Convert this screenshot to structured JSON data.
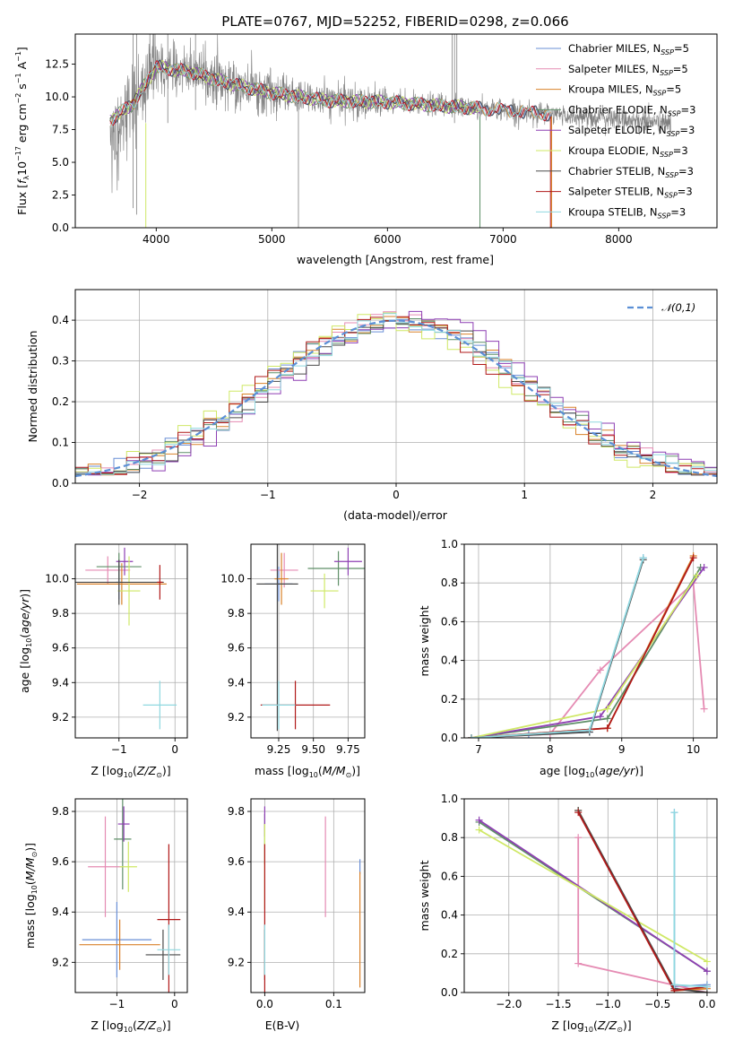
{
  "colors": {
    "Chabrier MILES": "#6a8fd6",
    "Salpeter MILES": "#e58bb3",
    "Kroupa MILES": "#d9822b",
    "Chabrier ELODIE": "#5f8f68",
    "Salpeter ELODIE": "#8e3fb3",
    "Kroupa ELODIE": "#cfe866",
    "Chabrier STELIB": "#4a4a4a",
    "Salpeter STELIB": "#b01818",
    "Kroupa STELIB": "#8fd8e0"
  },
  "chart_data": [
    {
      "type": "line",
      "title": "PLATE=0767, MJD=52252, FIBERID=0298, z=0.066",
      "xlabel": "wavelength [Angstrom, rest frame]",
      "ylabel": "Flux [fλ10⁻¹⁷ erg cm⁻² s⁻¹ A⁻¹]",
      "xlim": [
        3300,
        8850
      ],
      "ylim": [
        0,
        14.8
      ],
      "xticks": [
        "4000",
        "5000",
        "6000",
        "7000",
        "8000"
      ],
      "yticks": [
        "0.0",
        "2.5",
        "5.0",
        "7.5",
        "10.0",
        "12.5"
      ],
      "grid": false,
      "legend_position": "top-right",
      "legend": [
        "Chabrier MILES, N_SSP=5",
        "Salpeter MILES, N_SSP=5",
        "Kroupa MILES, N_SSP=5",
        "Chabrier ELODIE, N_SSP=3",
        "Salpeter ELODIE, N_SSP=3",
        "Kroupa ELODIE, N_SSP=3",
        "Chabrier STELIB, N_SSP=3",
        "Salpeter STELIB, N_SSP=3",
        "Kroupa STELIB, N_SSP=3"
      ],
      "data_series": {
        "name": "data",
        "color": "#808080",
        "x_range": [
          3600,
          8450
        ]
      },
      "model_continuum": {
        "x": [
          3600,
          3800,
          4000,
          4300,
          4600,
          5000,
          5500,
          6000,
          6500,
          7000,
          7500,
          8000,
          8400
        ],
        "y": [
          8.2,
          9.5,
          12.3,
          11.9,
          11.1,
          10.3,
          9.7,
          9.6,
          9.3,
          9.0,
          8.6,
          8.3,
          8.0
        ]
      }
    },
    {
      "type": "line",
      "xlabel": "(data-model)/error",
      "ylabel": "Normed distribution",
      "xlim": [
        -2.5,
        2.5
      ],
      "ylim": [
        0,
        0.475
      ],
      "xticks": [
        "−2",
        "−1",
        "0",
        "1",
        "2"
      ],
      "yticks": [
        "0.0",
        "0.1",
        "0.2",
        "0.3",
        "0.4"
      ],
      "grid": true,
      "legend_position": "top-right",
      "legend": [
        "𝒩(0,1)"
      ],
      "bin_width": 0.1,
      "reference_curve": "normal(0,1)",
      "series": [
        {
          "name": "Chabrier MILES",
          "offset": 0.05,
          "skew": -0.02
        },
        {
          "name": "Salpeter MILES",
          "offset": 0.0,
          "skew": 0.01
        },
        {
          "name": "Kroupa MILES",
          "offset": 0.02,
          "skew": 0.0
        },
        {
          "name": "Chabrier ELODIE",
          "offset": -0.02,
          "skew": 0.015
        },
        {
          "name": "Salpeter ELODIE",
          "offset": 0.08,
          "skew": 0.02
        },
        {
          "name": "Kroupa ELODIE",
          "offset": -0.05,
          "skew": -0.015
        },
        {
          "name": "Chabrier STELIB",
          "offset": 0.03,
          "skew": 0.005
        },
        {
          "name": "Salpeter STELIB",
          "offset": -0.01,
          "skew": -0.01
        },
        {
          "name": "Kroupa STELIB",
          "offset": 0.01,
          "skew": 0.012
        }
      ]
    },
    {
      "type": "scatter",
      "xlabel": "Z [log10(Z/Z⊙)]",
      "ylabel": "age  [log10(age/yr)]",
      "xlim": [
        -1.78,
        0.22
      ],
      "ylim": [
        9.08,
        10.2
      ],
      "xticks": [
        -1,
        0
      ],
      "yticks": [
        "9.2",
        "9.4",
        "9.6",
        "9.8",
        "10.0"
      ],
      "grid": true,
      "errorbars": [
        {
          "name": "Chabrier MILES",
          "x": -1.0,
          "y": 9.98,
          "xerr": 0.05,
          "yerr": 0.1
        },
        {
          "name": "Salpeter MILES",
          "x": -1.2,
          "y": 10.05,
          "xerr": 0.4,
          "yerr": 0.08
        },
        {
          "name": "Kroupa MILES",
          "x": -0.95,
          "y": 9.97,
          "xerr": 0.8,
          "yerr": 0.12
        },
        {
          "name": "Chabrier ELODIE",
          "x": -1.0,
          "y": 10.07,
          "xerr": 0.4,
          "yerr": 0.08
        },
        {
          "name": "Salpeter ELODIE",
          "x": -0.9,
          "y": 10.1,
          "xerr": 0.15,
          "yerr": 0.08
        },
        {
          "name": "Kroupa ELODIE",
          "x": -0.82,
          "y": 9.93,
          "xerr": 0.2,
          "yerr": 0.2
        },
        {
          "name": "Chabrier STELIB",
          "x": -1.0,
          "y": 9.98,
          "xerr": 0.8,
          "yerr": 0.13
        },
        {
          "name": "Salpeter STELIB",
          "x": -0.27,
          "y": 9.98,
          "xerr": 0.05,
          "yerr": 0.1
        },
        {
          "name": "Kroupa STELIB",
          "x": -0.27,
          "y": 9.27,
          "xerr": 0.3,
          "yerr": 0.14
        }
      ]
    },
    {
      "type": "scatter",
      "xlabel": "mass [log10(M/M⊙)]",
      "xlim": [
        9.05,
        9.87
      ],
      "ylim": [
        9.08,
        10.2
      ],
      "xticks": [
        "9.25",
        "9.50",
        "9.75"
      ],
      "yticks": [
        "9.2",
        "9.4",
        "9.6",
        "9.8",
        "10.0"
      ],
      "grid": true,
      "errorbars": [
        {
          "name": "Chabrier MILES",
          "x": 9.25,
          "y": 9.97,
          "xerr": 0.1,
          "yerr": 0.1
        },
        {
          "name": "Salpeter MILES",
          "x": 9.29,
          "y": 10.05,
          "xerr": 0.1,
          "yerr": 0.1
        },
        {
          "name": "Kroupa MILES",
          "x": 9.27,
          "y": 10.0,
          "xerr": 0.05,
          "yerr": 0.15
        },
        {
          "name": "Chabrier ELODIE",
          "x": 9.68,
          "y": 10.06,
          "xerr": 0.22,
          "yerr": 0.1
        },
        {
          "name": "Salpeter ELODIE",
          "x": 9.75,
          "y": 10.1,
          "xerr": 0.1,
          "yerr": 0.08
        },
        {
          "name": "Kroupa ELODIE",
          "x": 9.58,
          "y": 9.93,
          "xerr": 0.1,
          "yerr": 0.1
        },
        {
          "name": "Chabrier STELIB",
          "x": 9.24,
          "y": 9.97,
          "xerr": 0.15,
          "yerr": 0.85
        },
        {
          "name": "Salpeter STELIB",
          "x": 9.37,
          "y": 9.27,
          "xerr": 0.25,
          "yerr": 0.14
        },
        {
          "name": "Kroupa STELIB",
          "x": 9.25,
          "y": 9.27,
          "xerr": 0.12,
          "yerr": 0.14
        }
      ]
    },
    {
      "type": "line",
      "xlabel": "age  [log10(age/yr)]",
      "ylabel": "mass weight",
      "xlim": [
        6.8,
        10.33
      ],
      "ylim": [
        0,
        1.0
      ],
      "xticks": [
        "7",
        "8",
        "9",
        "10"
      ],
      "yticks": [
        "0.0",
        "0.2",
        "0.4",
        "0.6",
        "0.8",
        "1.0"
      ],
      "grid": true,
      "series": [
        {
          "name": "Chabrier MILES",
          "x": [
            6.9,
            7.7,
            8.55,
            9.3
          ],
          "y": [
            0.0,
            0.02,
            0.03,
            0.93
          ]
        },
        {
          "name": "Salpeter MILES",
          "x": [
            6.9,
            8.0,
            8.7,
            10.0,
            10.15
          ],
          "y": [
            0.0,
            0.02,
            0.35,
            0.8,
            0.15
          ]
        },
        {
          "name": "Kroupa MILES",
          "x": [
            6.9,
            8.8,
            10.0
          ],
          "y": [
            0.0,
            0.05,
            0.94
          ]
        },
        {
          "name": "Chabrier ELODIE",
          "x": [
            6.9,
            8.8,
            10.1
          ],
          "y": [
            0.0,
            0.1,
            0.88
          ]
        },
        {
          "name": "Salpeter ELODIE",
          "x": [
            6.9,
            8.7,
            10.15
          ],
          "y": [
            0.0,
            0.11,
            0.88
          ]
        },
        {
          "name": "Kroupa ELODIE",
          "x": [
            6.9,
            8.8,
            10.05
          ],
          "y": [
            0.0,
            0.15,
            0.84
          ]
        },
        {
          "name": "Chabrier STELIB",
          "x": [
            6.9,
            8.55,
            9.3
          ],
          "y": [
            0.0,
            0.03,
            0.92
          ]
        },
        {
          "name": "Salpeter STELIB",
          "x": [
            6.9,
            8.8,
            10.0
          ],
          "y": [
            0.0,
            0.05,
            0.93
          ]
        },
        {
          "name": "Kroupa STELIB",
          "x": [
            6.9,
            8.55,
            9.3
          ],
          "y": [
            0.0,
            0.04,
            0.93
          ]
        }
      ]
    },
    {
      "type": "scatter",
      "xlabel": "Z [log10(Z/Z⊙)]",
      "ylabel": "mass [log10(M/M⊙)]",
      "xlim": [
        -1.72,
        0.22
      ],
      "ylim": [
        9.08,
        9.85
      ],
      "xticks": [
        -1,
        0
      ],
      "yticks": [
        "9.2",
        "9.4",
        "9.6",
        "9.8"
      ],
      "grid": true,
      "errorbars": [
        {
          "name": "Chabrier MILES",
          "x": -1.0,
          "y": 9.29,
          "xerr": 0.6,
          "yerr": 0.15
        },
        {
          "name": "Salpeter MILES",
          "x": -1.2,
          "y": 9.58,
          "xerr": 0.3,
          "yerr": 0.2
        },
        {
          "name": "Kroupa MILES",
          "x": -0.95,
          "y": 9.27,
          "xerr": 0.7,
          "yerr": 0.1
        },
        {
          "name": "Chabrier ELODIE",
          "x": -0.9,
          "y": 9.69,
          "xerr": 0.15,
          "yerr": 0.2
        },
        {
          "name": "Salpeter ELODIE",
          "x": -0.88,
          "y": 9.75,
          "xerr": 0.1,
          "yerr": 0.07
        },
        {
          "name": "Kroupa ELODIE",
          "x": -0.8,
          "y": 9.58,
          "xerr": 0.15,
          "yerr": 0.1
        },
        {
          "name": "Chabrier STELIB",
          "x": -0.2,
          "y": 9.23,
          "xerr": 0.3,
          "yerr": 0.1
        },
        {
          "name": "Salpeter STELIB",
          "x": -0.1,
          "y": 9.37,
          "xerr": 0.2,
          "yerr": 0.3
        },
        {
          "name": "Kroupa STELIB",
          "x": -0.1,
          "y": 9.25,
          "xerr": 0.2,
          "yerr": 0.1
        }
      ]
    },
    {
      "type": "scatter",
      "xlabel": "E(B-V)",
      "xlim": [
        -0.02,
        0.145
      ],
      "ylim": [
        9.08,
        9.85
      ],
      "xticks": [
        "0.0",
        "0.1"
      ],
      "yticks": [
        "9.2",
        "9.4",
        "9.6",
        "9.8"
      ],
      "grid": true,
      "errorbars": [
        {
          "name": "Chabrier MILES",
          "x": 0.138,
          "y": 9.58,
          "xerr": 0.0,
          "yerr": 0.03
        },
        {
          "name": "Salpeter MILES",
          "x": 0.088,
          "y": 9.58,
          "xerr": 0.0,
          "yerr": 0.2
        },
        {
          "name": "Kroupa MILES",
          "x": 0.138,
          "y": 9.33,
          "xerr": 0.0,
          "yerr": 0.23
        },
        {
          "name": "Chabrier ELODIE",
          "x": 0.0,
          "y": 9.69,
          "xerr": 0.0,
          "yerr": 0.1
        },
        {
          "name": "Salpeter ELODIE",
          "x": 0.0,
          "y": 9.76,
          "xerr": 0.0,
          "yerr": 0.06
        },
        {
          "name": "Kroupa ELODIE",
          "x": 0.0,
          "y": 9.58,
          "xerr": 0.0,
          "yerr": 0.17
        },
        {
          "name": "Chabrier STELIB",
          "x": 0.0,
          "y": 9.23,
          "xerr": 0.0,
          "yerr": 0.1
        },
        {
          "name": "Salpeter STELIB",
          "x": 0.0,
          "y": 9.37,
          "xerr": 0.0,
          "yerr": 0.3
        },
        {
          "name": "Kroupa STELIB",
          "x": 0.0,
          "y": 9.25,
          "xerr": 0.0,
          "yerr": 0.1
        }
      ]
    },
    {
      "type": "line",
      "xlabel": "Z [log10(Z/Z⊙)]",
      "ylabel": "mass weight",
      "xlim": [
        -2.45,
        0.1
      ],
      "ylim": [
        0,
        1.0
      ],
      "xticks": [
        "−2.0",
        "−1.5",
        "−1.0",
        "−0.5",
        "0.0"
      ],
      "yticks": [
        "0.0",
        "0.2",
        "0.4",
        "0.6",
        "0.8",
        "1.0"
      ],
      "grid": true,
      "series": [
        {
          "name": "Chabrier MILES",
          "x": [
            -0.33,
            -0.33,
            0.0
          ],
          "y": [
            0.93,
            0.03,
            0.04
          ]
        },
        {
          "name": "Salpeter MILES",
          "x": [
            -1.3,
            -1.3,
            0.0
          ],
          "y": [
            0.8,
            0.15,
            0.0
          ]
        },
        {
          "name": "Kroupa MILES",
          "x": [
            -1.3,
            -0.33,
            0.0
          ],
          "y": [
            0.94,
            0.01,
            0.02
          ]
        },
        {
          "name": "Chabrier ELODIE",
          "x": [
            -2.3,
            0.0
          ],
          "y": [
            0.88,
            0.11
          ]
        },
        {
          "name": "Salpeter ELODIE",
          "x": [
            -2.3,
            0.0
          ],
          "y": [
            0.89,
            0.11
          ]
        },
        {
          "name": "Kroupa ELODIE",
          "x": [
            -2.3,
            0.0
          ],
          "y": [
            0.84,
            0.16
          ]
        },
        {
          "name": "Chabrier STELIB",
          "x": [
            -1.3,
            -0.33,
            0.0
          ],
          "y": [
            0.94,
            0.02,
            0.0
          ]
        },
        {
          "name": "Salpeter STELIB",
          "x": [
            -1.3,
            -0.33,
            0.0
          ],
          "y": [
            0.93,
            0.01,
            0.03
          ]
        },
        {
          "name": "Kroupa STELIB",
          "x": [
            -0.33,
            -0.33,
            0.0
          ],
          "y": [
            0.93,
            0.04,
            0.03
          ]
        }
      ]
    }
  ]
}
